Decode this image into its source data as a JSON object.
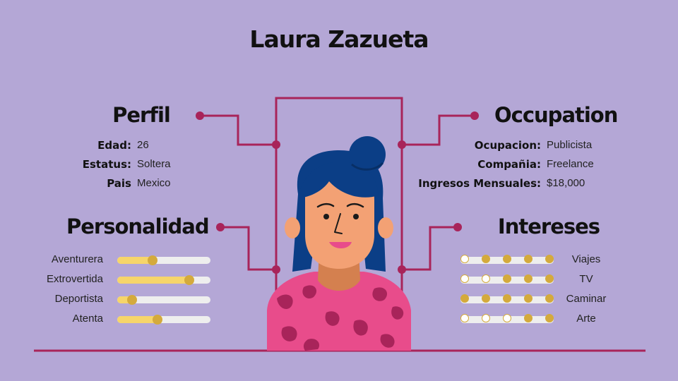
{
  "title": "Laura Zazueta",
  "colors": {
    "background": "#b4a7d6",
    "line": "#a8245a",
    "slider_fill": "#f6d56a",
    "dot": "#d4aa3c",
    "shirt": "#e84c8b",
    "hair": "#0b3e86"
  },
  "perfil": {
    "heading": "Perfil",
    "fields": [
      {
        "label": "Edad:",
        "value": "26"
      },
      {
        "label": "Estatus:",
        "value": "Soltera"
      },
      {
        "label": "Pais",
        "value": "Mexico"
      }
    ]
  },
  "occupation": {
    "heading": "Occupation",
    "fields": [
      {
        "label": "Ocupacion:",
        "value": "Publicista"
      },
      {
        "label": "Compañia:",
        "value": "Freelance"
      },
      {
        "label": "Ingresos Mensuales:",
        "value": "$18,000"
      }
    ]
  },
  "personalidad": {
    "heading": "Personalidad",
    "traits": [
      {
        "label": "Aventurera",
        "level": 0.38
      },
      {
        "label": "Extrovertida",
        "level": 0.77
      },
      {
        "label": "Deportista",
        "level": 0.16
      },
      {
        "label": "Atenta",
        "level": 0.43
      }
    ]
  },
  "intereses": {
    "heading": "Intereses",
    "items": [
      {
        "label": "Viajes",
        "dots": [
          0,
          1,
          1,
          1,
          1
        ]
      },
      {
        "label": "TV",
        "dots": [
          0,
          0,
          1,
          1,
          1
        ]
      },
      {
        "label": "Caminar",
        "dots": [
          1,
          1,
          1,
          1,
          1
        ]
      },
      {
        "label": "Arte",
        "dots": [
          0,
          0,
          0,
          1,
          1
        ]
      }
    ]
  }
}
